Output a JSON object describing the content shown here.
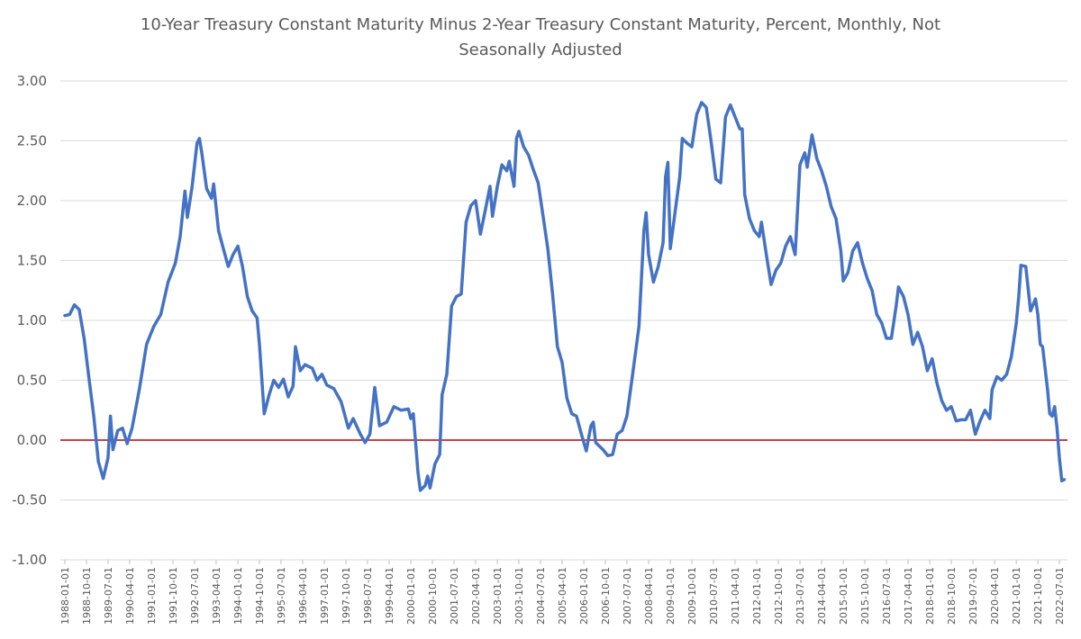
{
  "chart_data": {
    "type": "line",
    "title_lines": [
      "10-Year Treasury Constant Maturity Minus 2-Year Treasury Constant Maturity, Percent, Monthly, Not",
      "Seasonally Adjusted"
    ],
    "ylim": [
      -1.0,
      3.0
    ],
    "y_ticks": [
      "3.00",
      "2.50",
      "2.00",
      "1.50",
      "1.00",
      "0.50",
      "0.00",
      "-0.50",
      "-1.00"
    ],
    "y_tick_values": [
      3.0,
      2.5,
      2.0,
      1.5,
      1.0,
      0.5,
      0.0,
      -0.5,
      -1.0
    ],
    "x_tick_labels": [
      "1988-01-01",
      "1988-10-01",
      "1989-07-01",
      "1990-04-01",
      "1991-01-01",
      "1991-10-01",
      "1992-07-01",
      "1993-04-01",
      "1994-01-01",
      "1994-10-01",
      "1995-07-01",
      "1996-04-01",
      "1997-01-01",
      "1997-10-01",
      "1998-07-01",
      "1999-04-01",
      "2000-01-01",
      "2000-10-01",
      "2001-07-01",
      "2002-04-01",
      "2003-01-01",
      "2003-10-01",
      "2004-07-01",
      "2005-04-01",
      "2006-01-01",
      "2006-10-01",
      "2007-07-01",
      "2008-04-01",
      "2009-01-01",
      "2009-10-01",
      "2010-07-01",
      "2011-04-01",
      "2012-01-01",
      "2012-10-01",
      "2013-07-01",
      "2014-04-01",
      "2015-01-01",
      "2015-10-01",
      "2016-07-01",
      "2017-04-01",
      "2018-01-01",
      "2018-10-01",
      "2019-07-01",
      "2020-04-01",
      "2021-01-01",
      "2021-10-01",
      "2022-07-01"
    ],
    "grid": true,
    "legend": "none",
    "reference_line": {
      "y": 0.0,
      "color": "#c00000"
    },
    "series": [
      {
        "color": "#4472c4",
        "points": [
          [
            "1988-01-01",
            1.04
          ],
          [
            "1988-03-01",
            1.05
          ],
          [
            "1988-05-01",
            1.13
          ],
          [
            "1988-07-01",
            1.09
          ],
          [
            "1988-09-01",
            0.85
          ],
          [
            "1988-11-01",
            0.52
          ],
          [
            "1989-01-01",
            0.2
          ],
          [
            "1989-03-01",
            -0.18
          ],
          [
            "1989-05-01",
            -0.32
          ],
          [
            "1989-07-01",
            -0.15
          ],
          [
            "1989-08-01",
            0.2
          ],
          [
            "1989-09-01",
            -0.08
          ],
          [
            "1989-11-01",
            0.08
          ],
          [
            "1990-01-01",
            0.1
          ],
          [
            "1990-03-01",
            -0.03
          ],
          [
            "1990-05-01",
            0.1
          ],
          [
            "1990-08-01",
            0.42
          ],
          [
            "1990-11-01",
            0.8
          ],
          [
            "1991-02-01",
            0.95
          ],
          [
            "1991-05-01",
            1.05
          ],
          [
            "1991-08-01",
            1.32
          ],
          [
            "1991-11-01",
            1.48
          ],
          [
            "1992-01-01",
            1.7
          ],
          [
            "1992-03-01",
            2.08
          ],
          [
            "1992-04-01",
            1.86
          ],
          [
            "1992-06-01",
            2.12
          ],
          [
            "1992-08-01",
            2.48
          ],
          [
            "1992-09-01",
            2.52
          ],
          [
            "1992-10-01",
            2.4
          ],
          [
            "1992-12-01",
            2.1
          ],
          [
            "1993-02-01",
            2.02
          ],
          [
            "1993-03-01",
            2.14
          ],
          [
            "1993-05-01",
            1.75
          ],
          [
            "1993-07-01",
            1.6
          ],
          [
            "1993-09-01",
            1.45
          ],
          [
            "1993-11-01",
            1.55
          ],
          [
            "1994-01-01",
            1.62
          ],
          [
            "1994-03-01",
            1.45
          ],
          [
            "1994-05-01",
            1.2
          ],
          [
            "1994-07-01",
            1.08
          ],
          [
            "1994-09-01",
            1.02
          ],
          [
            "1994-10-01",
            0.8
          ],
          [
            "1994-12-01",
            0.22
          ],
          [
            "1995-02-01",
            0.38
          ],
          [
            "1995-04-01",
            0.5
          ],
          [
            "1995-06-01",
            0.44
          ],
          [
            "1995-08-01",
            0.51
          ],
          [
            "1995-10-01",
            0.36
          ],
          [
            "1995-12-01",
            0.45
          ],
          [
            "1996-01-01",
            0.78
          ],
          [
            "1996-03-01",
            0.58
          ],
          [
            "1996-05-01",
            0.63
          ],
          [
            "1996-08-01",
            0.6
          ],
          [
            "1996-10-01",
            0.5
          ],
          [
            "1996-12-01",
            0.55
          ],
          [
            "1997-02-01",
            0.46
          ],
          [
            "1997-05-01",
            0.43
          ],
          [
            "1997-08-01",
            0.32
          ],
          [
            "1997-11-01",
            0.1
          ],
          [
            "1998-01-01",
            0.18
          ],
          [
            "1998-04-01",
            0.05
          ],
          [
            "1998-06-01",
            -0.02
          ],
          [
            "1998-08-01",
            0.05
          ],
          [
            "1998-10-01",
            0.44
          ],
          [
            "1998-12-01",
            0.12
          ],
          [
            "1999-03-01",
            0.15
          ],
          [
            "1999-06-01",
            0.28
          ],
          [
            "1999-09-01",
            0.25
          ],
          [
            "1999-12-01",
            0.26
          ],
          [
            "2000-01-01",
            0.18
          ],
          [
            "2000-02-01",
            0.22
          ],
          [
            "2000-04-01",
            -0.27
          ],
          [
            "2000-05-01",
            -0.42
          ],
          [
            "2000-07-01",
            -0.38
          ],
          [
            "2000-08-01",
            -0.3
          ],
          [
            "2000-09-01",
            -0.4
          ],
          [
            "2000-11-01",
            -0.2
          ],
          [
            "2001-01-01",
            -0.12
          ],
          [
            "2001-02-01",
            0.38
          ],
          [
            "2001-04-01",
            0.55
          ],
          [
            "2001-06-01",
            1.12
          ],
          [
            "2001-08-01",
            1.2
          ],
          [
            "2001-10-01",
            1.22
          ],
          [
            "2001-12-01",
            1.82
          ],
          [
            "2002-02-01",
            1.96
          ],
          [
            "2002-04-01",
            2.0
          ],
          [
            "2002-06-01",
            1.72
          ],
          [
            "2002-08-01",
            1.92
          ],
          [
            "2002-10-01",
            2.12
          ],
          [
            "2002-11-01",
            1.87
          ],
          [
            "2003-01-01",
            2.12
          ],
          [
            "2003-03-01",
            2.3
          ],
          [
            "2003-05-01",
            2.25
          ],
          [
            "2003-06-01",
            2.33
          ],
          [
            "2003-08-01",
            2.12
          ],
          [
            "2003-09-01",
            2.52
          ],
          [
            "2003-10-01",
            2.58
          ],
          [
            "2003-12-01",
            2.45
          ],
          [
            "2004-02-01",
            2.38
          ],
          [
            "2004-04-01",
            2.26
          ],
          [
            "2004-06-01",
            2.15
          ],
          [
            "2004-08-01",
            1.88
          ],
          [
            "2004-10-01",
            1.6
          ],
          [
            "2004-12-01",
            1.22
          ],
          [
            "2005-02-01",
            0.78
          ],
          [
            "2005-04-01",
            0.65
          ],
          [
            "2005-06-01",
            0.35
          ],
          [
            "2005-08-01",
            0.22
          ],
          [
            "2005-10-01",
            0.2
          ],
          [
            "2005-12-01",
            0.05
          ],
          [
            "2006-02-01",
            -0.09
          ],
          [
            "2006-04-01",
            0.12
          ],
          [
            "2006-05-01",
            0.15
          ],
          [
            "2006-06-01",
            -0.02
          ],
          [
            "2006-09-01",
            -0.08
          ],
          [
            "2006-11-01",
            -0.13
          ],
          [
            "2007-01-01",
            -0.12
          ],
          [
            "2007-03-01",
            0.05
          ],
          [
            "2007-05-01",
            0.08
          ],
          [
            "2007-07-01",
            0.2
          ],
          [
            "2007-09-01",
            0.5
          ],
          [
            "2007-12-01",
            0.95
          ],
          [
            "2008-02-01",
            1.75
          ],
          [
            "2008-03-01",
            1.9
          ],
          [
            "2008-04-01",
            1.55
          ],
          [
            "2008-06-01",
            1.32
          ],
          [
            "2008-08-01",
            1.45
          ],
          [
            "2008-10-01",
            1.65
          ],
          [
            "2008-11-01",
            2.2
          ],
          [
            "2008-12-01",
            2.32
          ],
          [
            "2009-01-01",
            1.6
          ],
          [
            "2009-03-01",
            1.9
          ],
          [
            "2009-05-01",
            2.2
          ],
          [
            "2009-06-01",
            2.52
          ],
          [
            "2009-08-01",
            2.48
          ],
          [
            "2009-10-01",
            2.45
          ],
          [
            "2009-12-01",
            2.72
          ],
          [
            "2010-02-01",
            2.82
          ],
          [
            "2010-04-01",
            2.78
          ],
          [
            "2010-06-01",
            2.5
          ],
          [
            "2010-08-01",
            2.18
          ],
          [
            "2010-10-01",
            2.15
          ],
          [
            "2010-12-01",
            2.7
          ],
          [
            "2011-02-01",
            2.8
          ],
          [
            "2011-04-01",
            2.7
          ],
          [
            "2011-06-01",
            2.6
          ],
          [
            "2011-07-01",
            2.6
          ],
          [
            "2011-08-01",
            2.05
          ],
          [
            "2011-10-01",
            1.85
          ],
          [
            "2011-12-01",
            1.75
          ],
          [
            "2012-02-01",
            1.7
          ],
          [
            "2012-03-01",
            1.82
          ],
          [
            "2012-05-01",
            1.55
          ],
          [
            "2012-07-01",
            1.3
          ],
          [
            "2012-09-01",
            1.42
          ],
          [
            "2012-11-01",
            1.48
          ],
          [
            "2013-01-01",
            1.62
          ],
          [
            "2013-03-01",
            1.7
          ],
          [
            "2013-05-01",
            1.55
          ],
          [
            "2013-07-01",
            2.3
          ],
          [
            "2013-09-01",
            2.4
          ],
          [
            "2013-10-01",
            2.28
          ],
          [
            "2013-12-01",
            2.55
          ],
          [
            "2014-02-01",
            2.35
          ],
          [
            "2014-04-01",
            2.25
          ],
          [
            "2014-06-01",
            2.12
          ],
          [
            "2014-08-01",
            1.95
          ],
          [
            "2014-10-01",
            1.85
          ],
          [
            "2014-12-01",
            1.58
          ],
          [
            "2015-01-01",
            1.33
          ],
          [
            "2015-03-01",
            1.4
          ],
          [
            "2015-05-01",
            1.58
          ],
          [
            "2015-07-01",
            1.65
          ],
          [
            "2015-09-01",
            1.48
          ],
          [
            "2015-11-01",
            1.35
          ],
          [
            "2016-01-01",
            1.25
          ],
          [
            "2016-03-01",
            1.05
          ],
          [
            "2016-05-01",
            0.98
          ],
          [
            "2016-07-01",
            0.85
          ],
          [
            "2016-09-01",
            0.85
          ],
          [
            "2016-11-01",
            1.12
          ],
          [
            "2016-12-01",
            1.28
          ],
          [
            "2017-02-01",
            1.2
          ],
          [
            "2017-04-01",
            1.05
          ],
          [
            "2017-06-01",
            0.8
          ],
          [
            "2017-08-01",
            0.9
          ],
          [
            "2017-10-01",
            0.78
          ],
          [
            "2017-12-01",
            0.58
          ],
          [
            "2018-02-01",
            0.68
          ],
          [
            "2018-04-01",
            0.48
          ],
          [
            "2018-06-01",
            0.33
          ],
          [
            "2018-08-01",
            0.25
          ],
          [
            "2018-10-01",
            0.28
          ],
          [
            "2018-12-01",
            0.16
          ],
          [
            "2019-02-01",
            0.17
          ],
          [
            "2019-04-01",
            0.17
          ],
          [
            "2019-06-01",
            0.25
          ],
          [
            "2019-08-01",
            0.05
          ],
          [
            "2019-10-01",
            0.16
          ],
          [
            "2019-12-01",
            0.25
          ],
          [
            "2020-02-01",
            0.18
          ],
          [
            "2020-03-01",
            0.42
          ],
          [
            "2020-05-01",
            0.53
          ],
          [
            "2020-07-01",
            0.5
          ],
          [
            "2020-09-01",
            0.55
          ],
          [
            "2020-11-01",
            0.7
          ],
          [
            "2021-01-01",
            0.98
          ],
          [
            "2021-02-01",
            1.2
          ],
          [
            "2021-03-01",
            1.46
          ],
          [
            "2021-05-01",
            1.45
          ],
          [
            "2021-07-01",
            1.08
          ],
          [
            "2021-09-01",
            1.18
          ],
          [
            "2021-10-01",
            1.05
          ],
          [
            "2021-11-01",
            0.8
          ],
          [
            "2021-12-01",
            0.78
          ],
          [
            "2022-02-01",
            0.42
          ],
          [
            "2022-03-01",
            0.22
          ],
          [
            "2022-04-01",
            0.2
          ],
          [
            "2022-05-01",
            0.28
          ],
          [
            "2022-06-01",
            0.1
          ],
          [
            "2022-07-01",
            -0.15
          ],
          [
            "2022-08-01",
            -0.34
          ],
          [
            "2022-09-01",
            -0.33
          ]
        ]
      }
    ]
  }
}
